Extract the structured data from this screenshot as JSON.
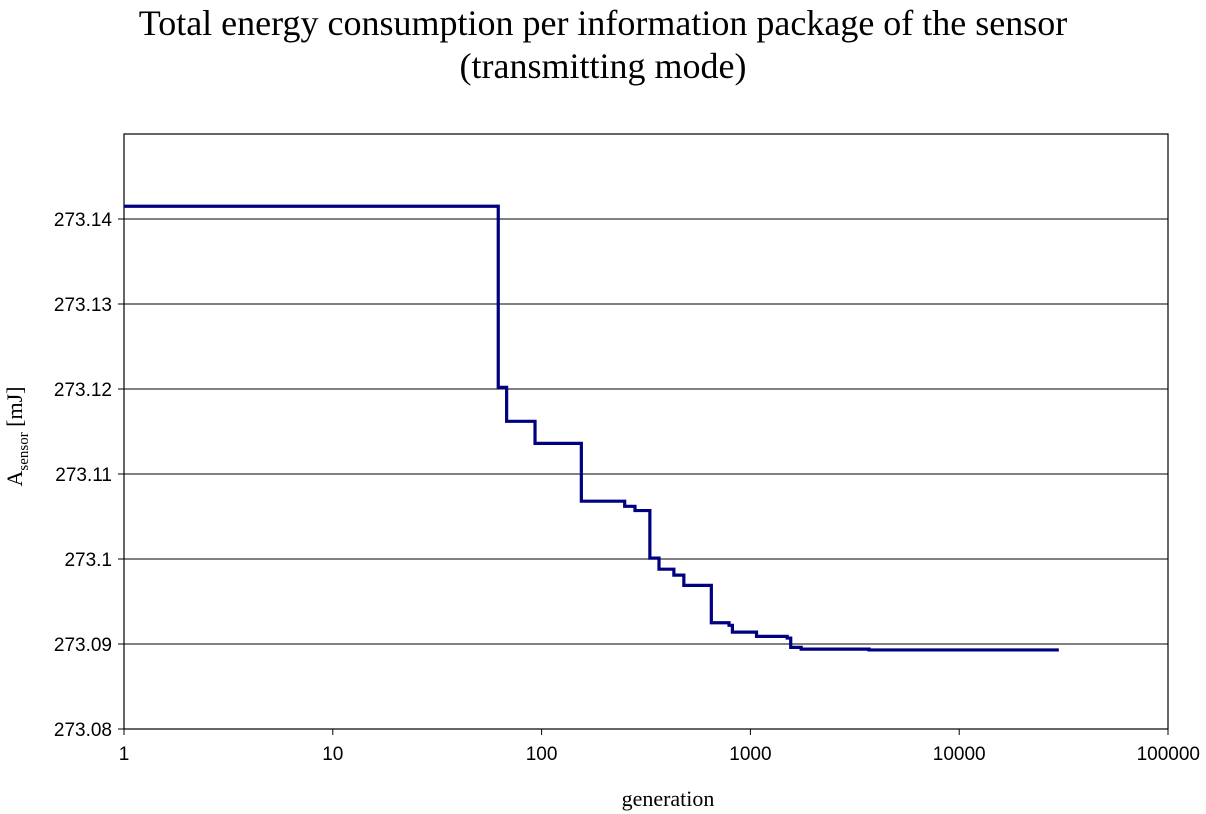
{
  "chart_data": {
    "type": "line",
    "title": "Total energy consumption per information package of the sensor",
    "subtitle": "(transmitting mode)",
    "xlabel": "generation",
    "ylabel_main": "A",
    "ylabel_subscript": "sensor",
    "ylabel_unit": " [mJ]",
    "x_scale": "log",
    "xlim": [
      1,
      100000
    ],
    "ylim": [
      273.08,
      273.15
    ],
    "x_ticks": [
      "1",
      "10",
      "100",
      "1000",
      "10000",
      "100000"
    ],
    "y_ticks": [
      "273.08",
      "273.09",
      "273.1",
      "273.11",
      "273.12",
      "273.13",
      "273.14"
    ],
    "grid": "horizontal",
    "line_color": "#000080",
    "series": [
      {
        "x": [
          1,
          62,
          62,
          68,
          68,
          93,
          93,
          155,
          155,
          250,
          250,
          280,
          280,
          330,
          330,
          365,
          365,
          430,
          430,
          480,
          480,
          650,
          650,
          790,
          790,
          820,
          820,
          1070,
          1070,
          1500,
          1500,
          1560,
          1560,
          1750,
          1750,
          3700,
          3700,
          30000
        ],
        "y": [
          273.1415,
          273.1415,
          273.1202,
          273.1202,
          273.1162,
          273.1162,
          273.1136,
          273.1136,
          273.1068,
          273.1068,
          273.1062,
          273.1062,
          273.1057,
          273.1057,
          273.1001,
          273.1001,
          273.0988,
          273.0988,
          273.0981,
          273.0981,
          273.0969,
          273.0969,
          273.0925,
          273.0925,
          273.0922,
          273.0922,
          273.0914,
          273.0914,
          273.0909,
          273.0909,
          273.0907,
          273.0907,
          273.0896,
          273.0896,
          273.0894,
          273.0894,
          273.0893,
          273.0893
        ]
      }
    ]
  }
}
